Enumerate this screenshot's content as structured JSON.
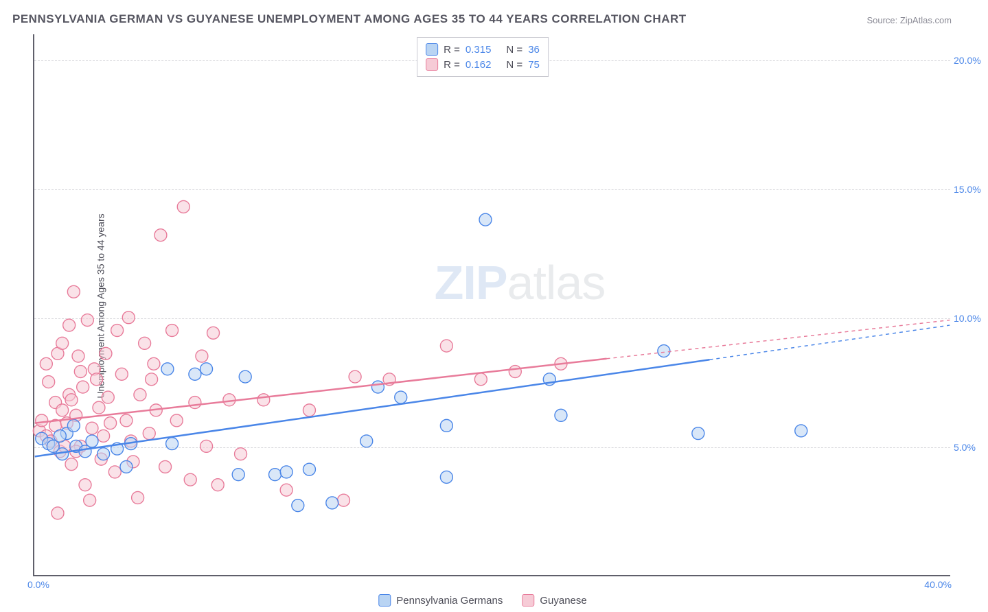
{
  "title": "PENNSYLVANIA GERMAN VS GUYANESE UNEMPLOYMENT AMONG AGES 35 TO 44 YEARS CORRELATION CHART",
  "source": "Source: ZipAtlas.com",
  "ylabel": "Unemployment Among Ages 35 to 44 years",
  "watermark_a": "ZIP",
  "watermark_b": "atlas",
  "chart": {
    "type": "scatter",
    "background_color": "#ffffff",
    "grid_color": "#d8d8dc",
    "axis_color": "#5f5f6a",
    "tick_label_color": "#4a86e8",
    "xlim": [
      0,
      40
    ],
    "ylim": [
      0,
      21
    ],
    "x_ticks": [
      {
        "v": 0,
        "label": "0.0%"
      },
      {
        "v": 40,
        "label": "40.0%"
      }
    ],
    "y_ticks": [
      {
        "v": 5,
        "label": "5.0%"
      },
      {
        "v": 10,
        "label": "10.0%"
      },
      {
        "v": 15,
        "label": "15.0%"
      },
      {
        "v": 20,
        "label": "20.0%"
      }
    ],
    "marker_radius": 9,
    "marker_opacity": 0.55,
    "line_width": 2.5,
    "series": [
      {
        "name": "Pennsylvania Germans",
        "color_fill": "#b9d4f3",
        "color_stroke": "#4a86e8",
        "r_value": "0.315",
        "n_value": "36",
        "regression": {
          "x1": 0,
          "y1": 4.6,
          "x2": 40,
          "y2": 9.7,
          "solid_until": 29.5
        },
        "points": [
          [
            0.3,
            5.3
          ],
          [
            0.6,
            5.1
          ],
          [
            1.2,
            4.7
          ],
          [
            1.4,
            5.5
          ],
          [
            1.8,
            5.0
          ],
          [
            2.2,
            4.8
          ],
          [
            2.5,
            5.2
          ],
          [
            3.0,
            4.7
          ],
          [
            3.6,
            4.9
          ],
          [
            4.0,
            4.2
          ],
          [
            4.2,
            5.1
          ],
          [
            5.8,
            8.0
          ],
          [
            6.0,
            5.1
          ],
          [
            7.0,
            7.8
          ],
          [
            7.5,
            8.0
          ],
          [
            8.9,
            3.9
          ],
          [
            9.2,
            7.7
          ],
          [
            10.5,
            3.9
          ],
          [
            11.0,
            4.0
          ],
          [
            11.5,
            2.7
          ],
          [
            12.0,
            4.1
          ],
          [
            13.0,
            2.8
          ],
          [
            15.0,
            7.3
          ],
          [
            14.5,
            5.2
          ],
          [
            16.0,
            6.9
          ],
          [
            18.0,
            5.8
          ],
          [
            18.0,
            3.8
          ],
          [
            19.7,
            13.8
          ],
          [
            22.5,
            7.6
          ],
          [
            23.0,
            6.2
          ],
          [
            27.5,
            8.7
          ],
          [
            29.0,
            5.5
          ],
          [
            33.5,
            5.6
          ],
          [
            1.7,
            5.8
          ],
          [
            1.1,
            5.4
          ],
          [
            0.8,
            5.0
          ]
        ]
      },
      {
        "name": "Guyanese",
        "color_fill": "#f6cbd6",
        "color_stroke": "#e87b9a",
        "r_value": "0.162",
        "n_value": "75",
        "regression": {
          "x1": 0,
          "y1": 5.9,
          "x2": 40,
          "y2": 9.9,
          "solid_until": 25
        },
        "points": [
          [
            0.2,
            5.6
          ],
          [
            0.3,
            6.0
          ],
          [
            0.5,
            5.4
          ],
          [
            0.6,
            7.5
          ],
          [
            0.7,
            5.2
          ],
          [
            0.9,
            6.7
          ],
          [
            0.9,
            5.8
          ],
          [
            1.0,
            8.6
          ],
          [
            1.1,
            4.8
          ],
          [
            1.2,
            9.0
          ],
          [
            1.3,
            5.0
          ],
          [
            1.5,
            9.7
          ],
          [
            1.5,
            7.0
          ],
          [
            1.6,
            4.3
          ],
          [
            1.7,
            11.0
          ],
          [
            1.8,
            6.2
          ],
          [
            1.9,
            8.5
          ],
          [
            2.0,
            5.0
          ],
          [
            2.1,
            7.3
          ],
          [
            2.2,
            3.5
          ],
          [
            2.3,
            9.9
          ],
          [
            2.5,
            5.7
          ],
          [
            2.6,
            8.0
          ],
          [
            2.8,
            6.5
          ],
          [
            2.9,
            4.5
          ],
          [
            3.0,
            5.4
          ],
          [
            3.1,
            8.6
          ],
          [
            3.2,
            6.9
          ],
          [
            3.5,
            4.0
          ],
          [
            3.6,
            9.5
          ],
          [
            3.8,
            7.8
          ],
          [
            4.0,
            6.0
          ],
          [
            4.1,
            10.0
          ],
          [
            4.2,
            5.2
          ],
          [
            4.5,
            3.0
          ],
          [
            4.6,
            7.0
          ],
          [
            4.8,
            9.0
          ],
          [
            5.0,
            5.5
          ],
          [
            5.2,
            8.2
          ],
          [
            5.3,
            6.4
          ],
          [
            5.5,
            13.2
          ],
          [
            5.7,
            4.2
          ],
          [
            6.0,
            9.5
          ],
          [
            6.2,
            6.0
          ],
          [
            6.5,
            14.3
          ],
          [
            6.8,
            3.7
          ],
          [
            7.0,
            6.7
          ],
          [
            7.3,
            8.5
          ],
          [
            7.5,
            5.0
          ],
          [
            7.8,
            9.4
          ],
          [
            8.0,
            3.5
          ],
          [
            8.5,
            6.8
          ],
          [
            9.0,
            4.7
          ],
          [
            10.0,
            6.8
          ],
          [
            11.0,
            3.3
          ],
          [
            12.0,
            6.4
          ],
          [
            13.5,
            2.9
          ],
          [
            14.0,
            7.7
          ],
          [
            15.5,
            7.6
          ],
          [
            18.0,
            8.9
          ],
          [
            19.5,
            7.6
          ],
          [
            21.0,
            7.9
          ],
          [
            23.0,
            8.2
          ],
          [
            1.0,
            2.4
          ],
          [
            2.4,
            2.9
          ],
          [
            0.5,
            8.2
          ],
          [
            1.4,
            5.9
          ],
          [
            1.2,
            6.4
          ],
          [
            2.7,
            7.6
          ],
          [
            3.3,
            5.9
          ],
          [
            1.8,
            4.8
          ],
          [
            4.3,
            4.4
          ],
          [
            5.1,
            7.6
          ],
          [
            1.6,
            6.8
          ],
          [
            2.0,
            7.9
          ]
        ]
      }
    ]
  },
  "legend_series": [
    {
      "label": "Pennsylvania Germans",
      "fill": "#b9d4f3",
      "stroke": "#4a86e8"
    },
    {
      "label": "Guyanese",
      "fill": "#f6cbd6",
      "stroke": "#e87b9a"
    }
  ]
}
